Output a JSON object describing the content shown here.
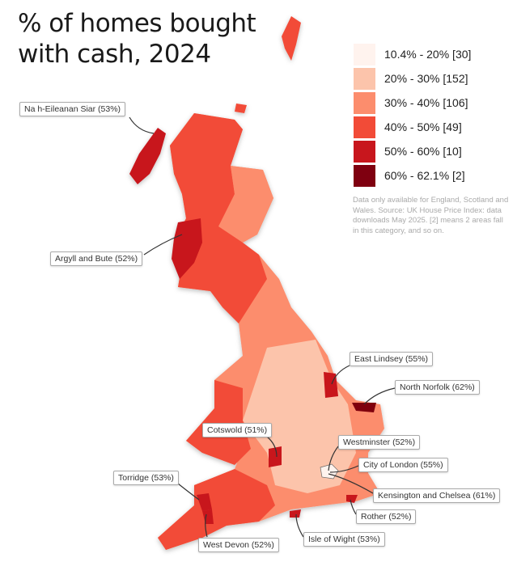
{
  "title": "% of homes bought with cash, 2024",
  "legend": [
    {
      "label": "10.4% - 20% [30]",
      "color": "#fff3ee"
    },
    {
      "label": "20% - 30% [152]",
      "color": "#fcc4ab"
    },
    {
      "label": "30% - 40% [106]",
      "color": "#fc8d6d"
    },
    {
      "label": "40% - 50% [49]",
      "color": "#f24b37"
    },
    {
      "label": "50% - 60% [10]",
      "color": "#c8161d"
    },
    {
      "label": "60% - 62.1% [2]",
      "color": "#7f0010"
    }
  ],
  "note": "Data only available for England, Scotland and Wales. Source: UK House Price Index: data downloads May 2025. [2] means 2 areas fall in this category, and so on.",
  "callouts": [
    {
      "label": "Na h-Eileanan Siar (53%)",
      "color": "#c8161d"
    },
    {
      "label": "Argyll and Bute (52%)",
      "color": "#c8161d"
    },
    {
      "label": "East Lindsey (55%)",
      "color": "#c8161d"
    },
    {
      "label": "North Norfolk (62%)",
      "color": "#7f0010"
    },
    {
      "label": "Cotswold (51%)",
      "color": "#c8161d"
    },
    {
      "label": "Westminster (52%)",
      "color": "#c8161d"
    },
    {
      "label": "City of London (55%)",
      "color": "#c8161d"
    },
    {
      "label": "Kensington and Chelsea (61%)",
      "color": "#7f0010"
    },
    {
      "label": "Torridge (53%)",
      "color": "#c8161d"
    },
    {
      "label": "Rother (52%)",
      "color": "#c8161d"
    },
    {
      "label": "Isle of Wight (53%)",
      "color": "#c8161d"
    },
    {
      "label": "West Devon (52%)",
      "color": "#c8161d"
    }
  ]
}
